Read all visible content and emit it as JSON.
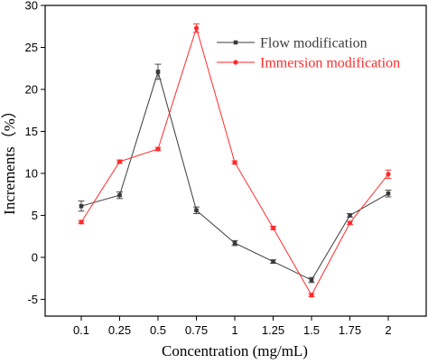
{
  "chart_data": {
    "type": "line",
    "xlabel": "Concentration (mg/mL)",
    "ylabel": "Increments（%）",
    "categories": [
      "0.1",
      "0.25",
      "0.5",
      "0.75",
      "1",
      "1.25",
      "1.5",
      "1.75",
      "2"
    ],
    "ylim": [
      -7,
      30
    ],
    "yticks": [
      -5,
      0,
      5,
      10,
      15,
      20,
      25,
      30
    ],
    "grid": false,
    "legend_position": "top-right",
    "series": [
      {
        "name": "Flow modification",
        "color": "#3a3a3a",
        "marker": "square",
        "values": [
          6.1,
          7.4,
          22.1,
          5.6,
          1.7,
          -0.5,
          -2.7,
          5.0,
          7.6
        ],
        "errors": [
          0.6,
          0.4,
          0.9,
          0.4,
          0.3,
          0.2,
          0.3,
          0.2,
          0.4
        ]
      },
      {
        "name": "Immersion modification",
        "color": "#ff2a2a",
        "marker": "circle",
        "values": [
          4.2,
          11.4,
          12.9,
          27.3,
          11.3,
          3.5,
          -4.5,
          4.1,
          9.9
        ],
        "errors": [
          0.2,
          0.2,
          0.2,
          0.5,
          0.2,
          0.2,
          0.2,
          0.2,
          0.5
        ]
      }
    ]
  }
}
